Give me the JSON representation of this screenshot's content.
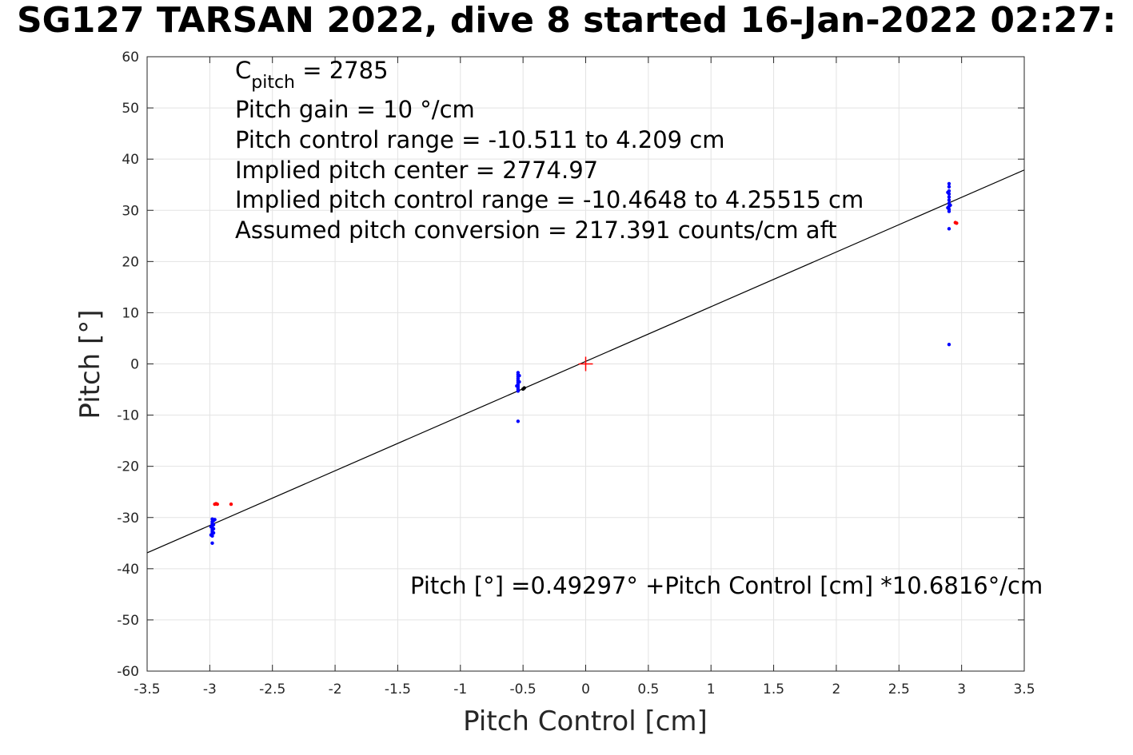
{
  "chart_data": {
    "type": "scatter",
    "title": "SG127 TARSAN 2022, dive 8 started 16-Jan-2022 02:27:",
    "xlabel": "Pitch Control [cm]",
    "ylabel": "Pitch [°]",
    "xlim": [
      -3.5,
      3.5
    ],
    "ylim": [
      -60,
      60
    ],
    "xticks": [
      -3.5,
      -3,
      -2.5,
      -2,
      -1.5,
      -1,
      -0.5,
      0,
      0.5,
      1,
      1.5,
      2,
      2.5,
      3,
      3.5
    ],
    "xtick_labels": [
      "-3.5",
      "-3",
      "-2.5",
      "-2",
      "-1.5",
      "-1",
      "-0.5",
      "0",
      "0.5",
      "1",
      "1.5",
      "2",
      "2.5",
      "3",
      "3.5"
    ],
    "yticks": [
      -60,
      -50,
      -40,
      -30,
      -20,
      -10,
      0,
      10,
      20,
      30,
      40,
      50,
      60
    ],
    "ytick_labels": [
      "-60",
      "-50",
      "-40",
      "-30",
      "-20",
      "-10",
      "0",
      "10",
      "20",
      "30",
      "40",
      "50",
      "60"
    ],
    "grid": true,
    "colors": {
      "blue": "#0000ff",
      "red": "#ff0000",
      "fit": "#000000",
      "grid": "#e3e3e3"
    },
    "series": [
      {
        "color": "#0000ff",
        "points": [
          [
            -2.98,
            -30.3
          ],
          [
            -2.98,
            -30.8
          ],
          [
            -2.98,
            -31.2
          ],
          [
            -2.98,
            -31.6
          ],
          [
            -2.98,
            -32.0
          ],
          [
            -2.98,
            -32.4
          ],
          [
            -2.98,
            -32.8
          ],
          [
            -2.98,
            -33.2
          ],
          [
            -2.98,
            -33.6
          ],
          [
            -2.97,
            -30.6
          ],
          [
            -2.97,
            -31.4
          ],
          [
            -2.97,
            -32.2
          ],
          [
            -2.97,
            -33.0
          ],
          [
            -2.99,
            -31.8
          ],
          [
            -2.99,
            -33.4
          ],
          [
            -2.98,
            -35.0
          ],
          [
            -2.96,
            -30.4
          ],
          [
            -0.54,
            -1.7
          ],
          [
            -0.54,
            -2.1
          ],
          [
            -0.54,
            -2.5
          ],
          [
            -0.54,
            -2.9
          ],
          [
            -0.54,
            -3.3
          ],
          [
            -0.54,
            -3.7
          ],
          [
            -0.54,
            -4.1
          ],
          [
            -0.54,
            -4.5
          ],
          [
            -0.54,
            -4.9
          ],
          [
            -0.54,
            -5.3
          ],
          [
            -0.53,
            -2.3
          ],
          [
            -0.53,
            -3.5
          ],
          [
            -0.55,
            -4.3
          ],
          [
            -0.54,
            -11.2
          ],
          [
            2.9,
            35.2
          ],
          [
            2.9,
            34.6
          ],
          [
            2.9,
            33.8
          ],
          [
            2.9,
            33.2
          ],
          [
            2.9,
            32.6
          ],
          [
            2.9,
            32.0
          ],
          [
            2.9,
            31.4
          ],
          [
            2.9,
            30.8
          ],
          [
            2.9,
            30.2
          ],
          [
            2.9,
            29.8
          ],
          [
            2.89,
            33.5
          ],
          [
            2.91,
            31.0
          ],
          [
            2.89,
            30.5
          ],
          [
            2.9,
            26.4
          ],
          [
            2.9,
            3.8
          ]
        ]
      },
      {
        "color": "#ff0000",
        "points": [
          [
            -2.95,
            -27.3
          ],
          [
            -2.94,
            -27.4
          ],
          [
            -2.96,
            -27.4
          ],
          [
            -2.83,
            -27.4
          ],
          [
            2.96,
            27.5
          ],
          [
            2.95,
            27.6
          ]
        ]
      },
      {
        "color": "#000000",
        "points": [
          [
            -0.49,
            -4.7
          ],
          [
            -0.5,
            -4.9
          ]
        ]
      }
    ],
    "fit_line": {
      "intercept": 0.49297,
      "slope": 10.6816
    },
    "center_marker": {
      "x": 0,
      "y": 0,
      "color": "#ff0000"
    },
    "annotations": {
      "c_pitch": {
        "base": "C",
        "sub": "pitch",
        "rest": " = 2785"
      },
      "lines": [
        "Pitch gain = 10 °/cm",
        "Pitch control range = -10.511 to 4.209 cm",
        "Implied pitch center = 2774.97",
        "Implied pitch control range = -10.4648 to 4.25515 cm",
        "Assumed pitch conversion = 217.391 counts/cm aft"
      ],
      "equation": "Pitch [°] =0.49297° +Pitch Control [cm] *10.6816°/cm"
    }
  }
}
